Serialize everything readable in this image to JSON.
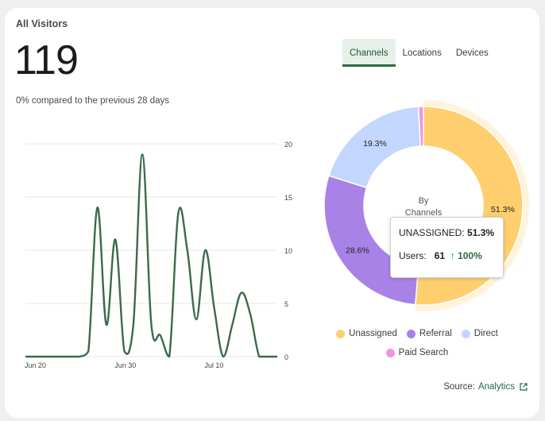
{
  "card": {
    "title": "All Visitors",
    "total": "119",
    "comparison": "0% compared to the previous 28 days"
  },
  "tabs": [
    "Channels",
    "Locations",
    "Devices"
  ],
  "active_tab": "Channels",
  "donut": {
    "center_line1": "By",
    "center_line2": "Channels"
  },
  "tooltip": {
    "label": "UNASSIGNED:",
    "pct": "51.3%",
    "users_label": "Users:",
    "users_value": "61",
    "change": "100%"
  },
  "legend": [
    {
      "label": "Unassigned",
      "color": "#ffce6f"
    },
    {
      "label": "Referral",
      "color": "#a882e6"
    },
    {
      "label": "Direct",
      "color": "#c3d6fd"
    },
    {
      "label": "Paid Search",
      "color": "#ee95dc"
    }
  ],
  "source": {
    "label": "Source:",
    "link": "Analytics"
  },
  "chart_data": [
    {
      "type": "line",
      "x": [
        0,
        1,
        2,
        3,
        4,
        5,
        6,
        7,
        8,
        9,
        10,
        11,
        12,
        13,
        14,
        15,
        16,
        17,
        18,
        19,
        20,
        21,
        22,
        23,
        24,
        25,
        26,
        27,
        28
      ],
      "x_tick_labels": [
        "Jun 20",
        "Jun 30",
        "Jul 10"
      ],
      "x_tick_positions": [
        0,
        10,
        20
      ],
      "series": [
        {
          "values": [
            0,
            0,
            0,
            0,
            0,
            0,
            0,
            0.5,
            14,
            3,
            11,
            0.5,
            3,
            19,
            3,
            2,
            0,
            13.5,
            10,
            3.5,
            10,
            4.5,
            0,
            3,
            6,
            4,
            0,
            0,
            0
          ]
        }
      ],
      "y_ticks": [
        0,
        5,
        10,
        15,
        20
      ],
      "ylim": [
        0,
        20
      ],
      "grid": true,
      "color": "#3a6b4a"
    },
    {
      "type": "pie",
      "labels": [
        "Unassigned",
        "Referral",
        "Direct",
        "Paid Search"
      ],
      "values": [
        51.3,
        28.6,
        19.3,
        0.8
      ],
      "data_labels": [
        "51.3%",
        "28.6%",
        "19.3%",
        ""
      ],
      "colors": [
        "#ffce6f",
        "#a882e6",
        "#c3d6fd",
        "#ee95dc"
      ],
      "highlighted": "Unassigned"
    }
  ]
}
